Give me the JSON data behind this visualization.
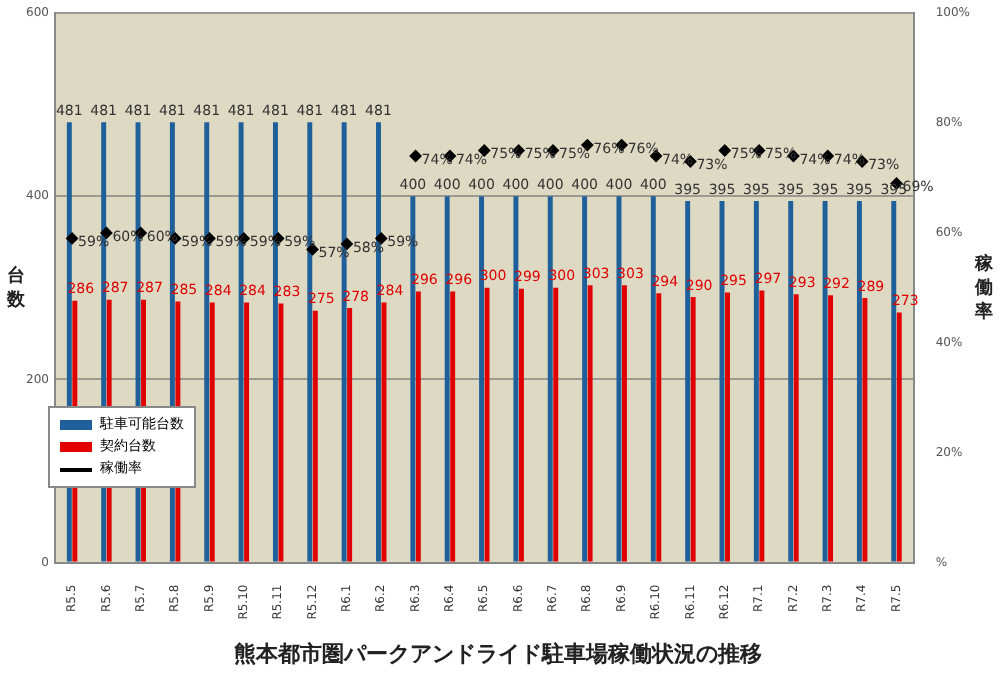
{
  "chart_data": {
    "type": "bar",
    "title": "熊本都市圏パークアンドライド駐車場稼働状況の推移",
    "ylabel": "台数",
    "y2label": "稼働率",
    "categories": [
      "R5.5",
      "R5.6",
      "R5.7",
      "R5.8",
      "R5.9",
      "R5.10",
      "R5.11",
      "R5.12",
      "R6.1",
      "R6.2",
      "R6.3",
      "R6.4",
      "R6.5",
      "R6.6",
      "R6.7",
      "R6.8",
      "R6.9",
      "R6.10",
      "R6.11",
      "R6.12",
      "R7.1",
      "R7.2",
      "R7.3",
      "R7.4",
      "R7.5"
    ],
    "series": [
      {
        "name": "駐車可能台数",
        "color": "#1f5f9a",
        "values": [
          481,
          481,
          481,
          481,
          481,
          481,
          481,
          481,
          481,
          481,
          400,
          400,
          400,
          400,
          400,
          400,
          400,
          400,
          395,
          395,
          395,
          395,
          395,
          395,
          395
        ]
      },
      {
        "name": "契約台数",
        "color": "#e00000",
        "values": [
          286,
          287,
          287,
          285,
          284,
          284,
          283,
          275,
          278,
          284,
          296,
          296,
          300,
          299,
          300,
          303,
          303,
          294,
          290,
          295,
          297,
          293,
          292,
          289,
          273
        ]
      },
      {
        "name": "稼働率",
        "type": "scatter",
        "axis": "y2",
        "color": "#000000",
        "marker": "diamond",
        "value_labels": [
          "59%",
          "60%",
          "60%",
          "59%",
          "59%",
          "59%",
          "59%",
          "57%",
          "58%",
          "59%",
          "74%",
          "74%",
          "75%",
          "75%",
          "75%",
          "76%",
          "76%",
          "74%",
          "73%",
          "75%",
          "75%",
          "74%",
          "74%",
          "73%",
          "69%"
        ],
        "values": [
          59,
          60,
          60,
          59,
          59,
          59,
          59,
          57,
          58,
          59,
          74,
          74,
          75,
          75,
          75,
          76,
          76,
          74,
          73,
          75,
          75,
          74,
          74,
          73,
          69
        ]
      }
    ],
    "ylim": [
      0,
      600
    ],
    "yticks": [
      0,
      200,
      400,
      600
    ],
    "y2lim": [
      0,
      100
    ],
    "y2ticks": [
      {
        "value": 0,
        "label": "%"
      },
      {
        "value": 20,
        "label": "20%"
      },
      {
        "value": 40,
        "label": "40%"
      },
      {
        "value": 60,
        "label": "60%"
      },
      {
        "value": 80,
        "label": "80%"
      },
      {
        "value": 100,
        "label": "100%"
      }
    ],
    "data_labels": true,
    "grid": "y",
    "legend": "left"
  }
}
